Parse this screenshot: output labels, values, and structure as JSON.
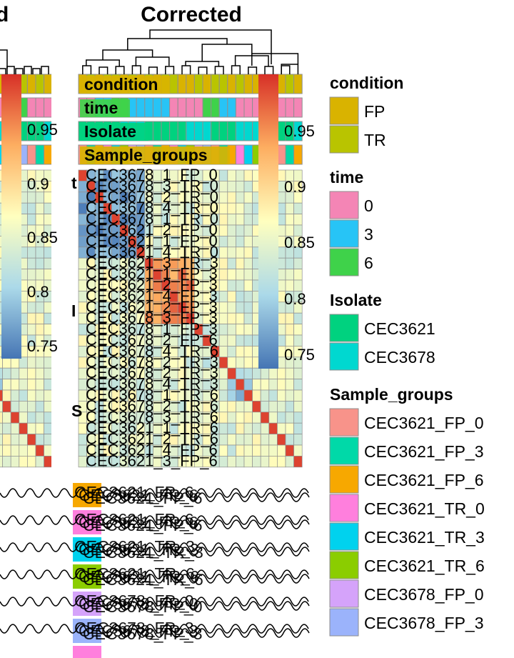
{
  "chart_data": {
    "type": "heatmap",
    "panels": [
      {
        "title": "d"
      },
      {
        "title": "Corrected"
      }
    ],
    "color_scale": {
      "ticks": [
        0.75,
        0.8,
        0.85,
        0.9,
        0.95
      ],
      "range": [
        0.72,
        0.98
      ],
      "colors": [
        "#4575b4",
        "#abd9e9",
        "#ffffbf",
        "#fdae61",
        "#d73027"
      ]
    },
    "annotation_rows": [
      "condition",
      "time",
      "Isolate",
      "Sample_groups"
    ],
    "left_panel_partial_labels": [
      "t",
      "I",
      "S"
    ],
    "sample_labels": [
      "CEC3678_1_FP_0",
      "CEC3678_3_TR_0",
      "CEC3678_2_TR_0",
      "CEC3678_4_TR_0",
      "CEC3678_1_TR_0",
      "CEC3621_2_FP_0",
      "CEC3621_1_FP_0",
      "CEC3621_4_TR_0",
      "CEC3621_3_TR_3",
      "CEC3621_1_FP_3",
      "CEC3621_2_FP_3",
      "CEC3621_4_FP_3",
      "CEC3621_2_FP_3",
      "CEC3678_3_FP_3",
      "CEC3678_1_FP_3",
      "CEC3678_2_FP_6",
      "CEC3678_4_TR_6",
      "CEC3678_2_TR_3",
      "CEC3678_2_TR_3",
      "CEC3678_4_TR_3",
      "CEC3678_1_TR_6",
      "CEC3678_2_TR_6",
      "CEC3678_3_TR_6",
      "CEC3621_1_TR_6",
      "CEC3621_2_TR_6",
      "CEC3621_4_FP_6",
      "CEC3621_3_FP_6"
    ],
    "bottom_fragments": [
      "CEC3621_FP_6",
      "CEC3621_FP_6",
      "CEC3621_TR_3",
      "CEC3621_TR_6",
      "CEC3678_FP_0",
      "CEC3678_FP_3"
    ],
    "legends": [
      {
        "title": "condition",
        "items": [
          {
            "label": "FP",
            "color": "#d9b300"
          },
          {
            "label": "TR",
            "color": "#b9c400"
          }
        ]
      },
      {
        "title": "time",
        "items": [
          {
            "label": "0",
            "color": "#f485b5"
          },
          {
            "label": "3",
            "color": "#27c4f6"
          },
          {
            "label": "6",
            "color": "#3fd24a"
          }
        ]
      },
      {
        "title": "Isolate",
        "items": [
          {
            "label": "CEC3621",
            "color": "#00d27f"
          },
          {
            "label": "CEC3678",
            "color": "#00d8d0"
          }
        ]
      },
      {
        "title": "Sample_groups",
        "items": [
          {
            "label": "CEC3621_FP_0",
            "color": "#f8938a"
          },
          {
            "label": "CEC3621_FP_3",
            "color": "#00d9a8"
          },
          {
            "label": "CEC3621_FP_6",
            "color": "#f7a800"
          },
          {
            "label": "CEC3621_TR_0",
            "color": "#ff7fdd"
          },
          {
            "label": "CEC3621_TR_3",
            "color": "#00d2ee"
          },
          {
            "label": "CEC3621_TR_6",
            "color": "#8bcd00"
          },
          {
            "label": "CEC3678_FP_0",
            "color": "#d5a3fa"
          },
          {
            "label": "CEC3678_FP_3",
            "color": "#9bb3fb"
          }
        ]
      }
    ],
    "cluster_blocks": [
      {
        "rows": [
          0,
          7
        ],
        "level": 0.75
      },
      {
        "rows": [
          8,
          13
        ],
        "level": 0.93
      },
      {
        "rows": [
          14,
          17
        ],
        "level": 0.82
      },
      {
        "rows": [
          18,
          20
        ],
        "level": 0.78
      }
    ]
  }
}
